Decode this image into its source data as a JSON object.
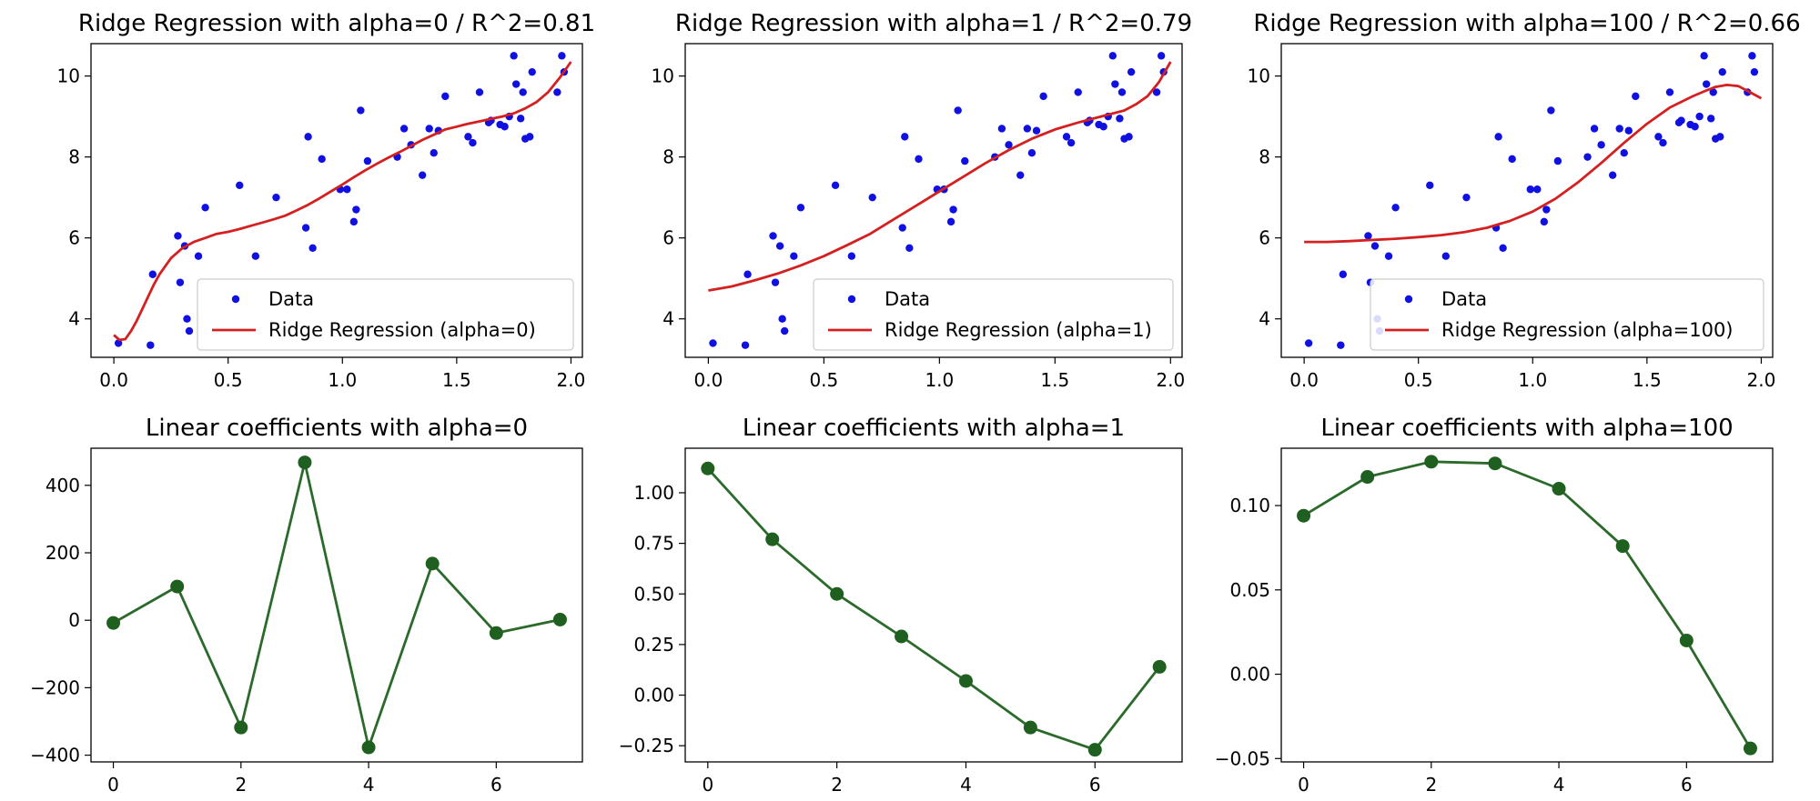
{
  "colors": {
    "data_points": "#1010e0",
    "ridge_line": "#d42020",
    "coef_line": "#2b6a2b",
    "coef_marker": "#1f5f1f"
  },
  "chart_data": [
    {
      "type": "scatter",
      "title": "Ridge Regression with alpha=0 / R^2=0.81",
      "xlim": [
        -0.1,
        2.05
      ],
      "ylim": [
        3.05,
        10.8
      ],
      "xticks": [
        0.0,
        0.5,
        1.0,
        1.5,
        2.0
      ],
      "xtick_labels": [
        "0.0",
        "0.5",
        "1.0",
        "1.5",
        "2.0"
      ],
      "yticks": [
        4,
        6,
        8,
        10
      ],
      "ytick_labels": [
        "4",
        "6",
        "8",
        "10"
      ],
      "legend_placement": "lower-right",
      "series": [
        {
          "name": "Data",
          "kind": "scatter",
          "x": [
            0.02,
            0.16,
            0.17,
            0.28,
            0.29,
            0.31,
            0.32,
            0.33,
            0.37,
            0.4,
            0.55,
            0.62,
            0.71,
            0.84,
            0.85,
            0.87,
            0.91,
            0.99,
            1.02,
            1.05,
            1.06,
            1.08,
            1.11,
            1.24,
            1.27,
            1.3,
            1.35,
            1.38,
            1.4,
            1.42,
            1.45,
            1.55,
            1.57,
            1.6,
            1.64,
            1.65,
            1.69,
            1.71,
            1.73,
            1.75,
            1.76,
            1.78,
            1.79,
            1.8,
            1.82,
            1.83,
            1.94,
            1.96,
            1.97
          ],
          "y": [
            3.4,
            3.35,
            5.1,
            6.05,
            4.9,
            5.8,
            4.0,
            3.7,
            5.55,
            6.75,
            7.3,
            5.55,
            7.0,
            6.25,
            8.5,
            5.75,
            7.95,
            7.2,
            7.2,
            6.4,
            6.7,
            9.15,
            7.9,
            8.0,
            8.7,
            8.3,
            7.55,
            8.7,
            8.1,
            8.65,
            9.5,
            8.5,
            8.35,
            9.6,
            8.85,
            8.9,
            8.8,
            8.75,
            9.0,
            10.5,
            9.8,
            8.95,
            9.6,
            8.45,
            8.5,
            10.1,
            9.6,
            10.5,
            10.1
          ]
        },
        {
          "name": "Ridge Regression (alpha=0)",
          "kind": "line",
          "x": [
            0.0,
            0.025,
            0.05,
            0.075,
            0.1,
            0.125,
            0.15,
            0.175,
            0.2,
            0.225,
            0.25,
            0.3,
            0.35,
            0.4,
            0.45,
            0.5,
            0.55,
            0.6,
            0.65,
            0.7,
            0.75,
            0.8,
            0.85,
            0.9,
            0.95,
            1.0,
            1.05,
            1.1,
            1.15,
            1.2,
            1.25,
            1.3,
            1.35,
            1.4,
            1.45,
            1.5,
            1.55,
            1.6,
            1.65,
            1.7,
            1.75,
            1.8,
            1.85,
            1.9,
            1.95,
            2.0
          ],
          "y": [
            3.6,
            3.48,
            3.5,
            3.7,
            3.95,
            4.25,
            4.55,
            4.85,
            5.1,
            5.3,
            5.5,
            5.75,
            5.9,
            6.0,
            6.1,
            6.15,
            6.22,
            6.3,
            6.38,
            6.46,
            6.55,
            6.68,
            6.82,
            6.98,
            7.15,
            7.32,
            7.5,
            7.67,
            7.83,
            7.98,
            8.12,
            8.27,
            8.42,
            8.55,
            8.68,
            8.75,
            8.82,
            8.88,
            8.94,
            9.0,
            9.08,
            9.2,
            9.36,
            9.6,
            9.95,
            10.35
          ]
        }
      ]
    },
    {
      "type": "scatter",
      "title": "Ridge Regression with alpha=1 / R^2=0.79",
      "xlim": [
        -0.1,
        2.05
      ],
      "ylim": [
        3.05,
        10.8
      ],
      "xticks": [
        0.0,
        0.5,
        1.0,
        1.5,
        2.0
      ],
      "xtick_labels": [
        "0.0",
        "0.5",
        "1.0",
        "1.5",
        "2.0"
      ],
      "yticks": [
        4,
        6,
        8,
        10
      ],
      "ytick_labels": [
        "4",
        "6",
        "8",
        "10"
      ],
      "legend_placement": "lower-right",
      "series": [
        {
          "name": "Data",
          "kind": "scatter",
          "x": [
            0.02,
            0.16,
            0.17,
            0.28,
            0.29,
            0.31,
            0.32,
            0.33,
            0.37,
            0.4,
            0.55,
            0.62,
            0.71,
            0.84,
            0.85,
            0.87,
            0.91,
            0.99,
            1.02,
            1.05,
            1.06,
            1.08,
            1.11,
            1.24,
            1.27,
            1.3,
            1.35,
            1.38,
            1.4,
            1.42,
            1.45,
            1.55,
            1.57,
            1.6,
            1.64,
            1.65,
            1.69,
            1.71,
            1.73,
            1.75,
            1.76,
            1.78,
            1.79,
            1.8,
            1.82,
            1.83,
            1.94,
            1.96,
            1.97
          ],
          "y": [
            3.4,
            3.35,
            5.1,
            6.05,
            4.9,
            5.8,
            4.0,
            3.7,
            5.55,
            6.75,
            7.3,
            5.55,
            7.0,
            6.25,
            8.5,
            5.75,
            7.95,
            7.2,
            7.2,
            6.4,
            6.7,
            9.15,
            7.9,
            8.0,
            8.7,
            8.3,
            7.55,
            8.7,
            8.1,
            8.65,
            9.5,
            8.5,
            8.35,
            9.6,
            8.85,
            8.9,
            8.8,
            8.75,
            9.0,
            10.5,
            9.8,
            8.95,
            9.6,
            8.45,
            8.5,
            10.1,
            9.6,
            10.5,
            10.1
          ]
        },
        {
          "name": "Ridge Regression (alpha=1)",
          "kind": "line",
          "x": [
            0.0,
            0.1,
            0.2,
            0.3,
            0.4,
            0.5,
            0.6,
            0.7,
            0.8,
            0.9,
            1.0,
            1.1,
            1.2,
            1.3,
            1.4,
            1.5,
            1.6,
            1.7,
            1.8,
            1.85,
            1.9,
            1.95,
            2.0
          ],
          "y": [
            4.7,
            4.8,
            4.95,
            5.12,
            5.32,
            5.55,
            5.82,
            6.1,
            6.45,
            6.8,
            7.15,
            7.5,
            7.85,
            8.17,
            8.45,
            8.68,
            8.85,
            9.0,
            9.15,
            9.3,
            9.5,
            9.85,
            10.35
          ]
        }
      ]
    },
    {
      "type": "scatter",
      "title": "Ridge Regression with alpha=100 / R^2=0.66",
      "xlim": [
        -0.1,
        2.05
      ],
      "ylim": [
        3.05,
        10.8
      ],
      "xticks": [
        0.0,
        0.5,
        1.0,
        1.5,
        2.0
      ],
      "xtick_labels": [
        "0.0",
        "0.5",
        "1.0",
        "1.5",
        "2.0"
      ],
      "yticks": [
        4,
        6,
        8,
        10
      ],
      "ytick_labels": [
        "4",
        "6",
        "8",
        "10"
      ],
      "legend_placement": "lower-right",
      "series": [
        {
          "name": "Data",
          "kind": "scatter",
          "x": [
            0.02,
            0.16,
            0.17,
            0.28,
            0.29,
            0.31,
            0.32,
            0.33,
            0.37,
            0.4,
            0.55,
            0.62,
            0.71,
            0.84,
            0.85,
            0.87,
            0.91,
            0.99,
            1.02,
            1.05,
            1.06,
            1.08,
            1.11,
            1.24,
            1.27,
            1.3,
            1.35,
            1.38,
            1.4,
            1.42,
            1.45,
            1.55,
            1.57,
            1.6,
            1.64,
            1.65,
            1.69,
            1.71,
            1.73,
            1.75,
            1.76,
            1.78,
            1.79,
            1.8,
            1.82,
            1.83,
            1.94,
            1.96,
            1.97
          ],
          "y": [
            3.4,
            3.35,
            5.1,
            6.05,
            4.9,
            5.8,
            4.0,
            3.7,
            5.55,
            6.75,
            7.3,
            5.55,
            7.0,
            6.25,
            8.5,
            5.75,
            7.95,
            7.2,
            7.2,
            6.4,
            6.7,
            9.15,
            7.9,
            8.0,
            8.7,
            8.3,
            7.55,
            8.7,
            8.1,
            8.65,
            9.5,
            8.5,
            8.35,
            9.6,
            8.85,
            8.9,
            8.8,
            8.75,
            9.0,
            10.5,
            9.8,
            8.95,
            9.6,
            8.45,
            8.5,
            10.1,
            9.6,
            10.5,
            10.1
          ]
        },
        {
          "name": "Ridge Regression (alpha=100)",
          "kind": "line",
          "x": [
            0.0,
            0.1,
            0.2,
            0.3,
            0.4,
            0.5,
            0.6,
            0.7,
            0.8,
            0.9,
            1.0,
            1.1,
            1.2,
            1.3,
            1.4,
            1.5,
            1.6,
            1.7,
            1.75,
            1.8,
            1.85,
            1.9,
            1.95,
            2.0
          ],
          "y": [
            5.9,
            5.9,
            5.92,
            5.95,
            5.98,
            6.02,
            6.07,
            6.14,
            6.25,
            6.42,
            6.65,
            6.97,
            7.38,
            7.85,
            8.35,
            8.82,
            9.22,
            9.5,
            9.62,
            9.73,
            9.78,
            9.75,
            9.6,
            9.45
          ]
        }
      ]
    },
    {
      "type": "line",
      "title": "Linear coefficients with alpha=0",
      "xlim": [
        -0.35,
        7.35
      ],
      "ylim": [
        -420,
        510
      ],
      "xticks": [
        0,
        2,
        4,
        6
      ],
      "xtick_labels": [
        "0",
        "2",
        "4",
        "6"
      ],
      "yticks": [
        -400,
        -200,
        0,
        200,
        400
      ],
      "ytick_labels": [
        "−400",
        "−200",
        "0",
        "200",
        "400"
      ],
      "x": [
        0,
        1,
        2,
        3,
        4,
        5,
        6,
        7
      ],
      "values": [
        -8,
        100,
        -318,
        468,
        -377,
        168,
        -38,
        2
      ]
    },
    {
      "type": "line",
      "title": "Linear coefficients with alpha=1",
      "xlim": [
        -0.35,
        7.35
      ],
      "ylim": [
        -0.33,
        1.22
      ],
      "xticks": [
        0,
        2,
        4,
        6
      ],
      "xtick_labels": [
        "0",
        "2",
        "4",
        "6"
      ],
      "yticks": [
        -0.25,
        0.0,
        0.25,
        0.5,
        0.75,
        1.0
      ],
      "ytick_labels": [
        "−0.25",
        "0.00",
        "0.25",
        "0.50",
        "0.75",
        "1.00"
      ],
      "x": [
        0,
        1,
        2,
        3,
        4,
        5,
        6,
        7
      ],
      "values": [
        1.12,
        0.77,
        0.5,
        0.29,
        0.07,
        -0.16,
        -0.27,
        0.14
      ]
    },
    {
      "type": "line",
      "title": "Linear coefficients with alpha=100",
      "xlim": [
        -0.35,
        7.35
      ],
      "ylim": [
        -0.052,
        0.134
      ],
      "xticks": [
        0,
        2,
        4,
        6
      ],
      "xtick_labels": [
        "0",
        "2",
        "4",
        "6"
      ],
      "yticks": [
        -0.05,
        0.0,
        0.05,
        0.1
      ],
      "ytick_labels": [
        "−0.05",
        "0.00",
        "0.05",
        "0.10"
      ],
      "x": [
        0,
        1,
        2,
        3,
        4,
        5,
        6,
        7
      ],
      "values": [
        0.094,
        0.117,
        0.126,
        0.125,
        0.11,
        0.076,
        0.02,
        -0.044
      ]
    }
  ]
}
